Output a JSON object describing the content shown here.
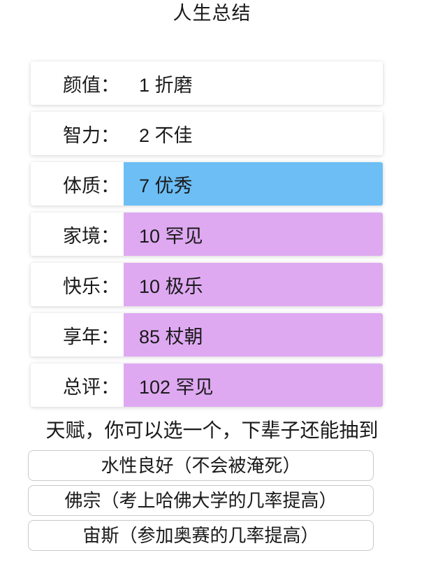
{
  "page": {
    "title": "人生总结"
  },
  "summary": {
    "rows": [
      {
        "label": "颜值：",
        "value": "1 折磨",
        "grade": "none"
      },
      {
        "label": "智力：",
        "value": "2 不佳",
        "grade": "none"
      },
      {
        "label": "体质：",
        "value": "7 优秀",
        "grade": "blue"
      },
      {
        "label": "家境：",
        "value": "10 罕见",
        "grade": "purple"
      },
      {
        "label": "快乐：",
        "value": "10 极乐",
        "grade": "purple"
      },
      {
        "label": "享年：",
        "value": "85 杖朝",
        "grade": "purple"
      },
      {
        "label": "总评：",
        "value": "102 罕见",
        "grade": "purple"
      }
    ]
  },
  "talent": {
    "hint": "天赋，你可以选一个，下辈子还能抽到",
    "options": [
      "水性良好（不会被淹死）",
      "佛宗（考上哈佛大学的几率提高）",
      "宙斯（参加奥赛的几率提高）"
    ]
  },
  "colors": {
    "grade_blue": "#6cbef5",
    "grade_purple": "#dfa9f2"
  }
}
